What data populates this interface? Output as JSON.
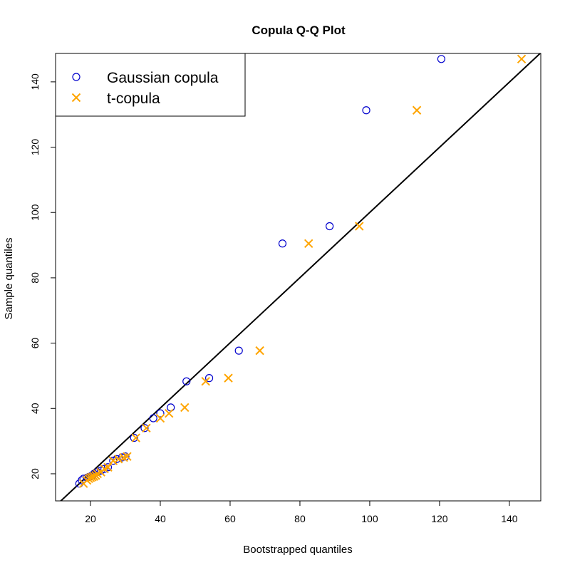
{
  "chart_data": {
    "type": "scatter",
    "title": "Copula Q-Q Plot",
    "xlabel": "Bootstrapped quantiles",
    "ylabel": "Sample quantiles",
    "xlim": [
      10,
      149
    ],
    "ylim": [
      11.7,
      148.7
    ],
    "xticks": [
      20,
      40,
      60,
      80,
      100,
      120,
      140
    ],
    "yticks": [
      20,
      40,
      60,
      80,
      100,
      120,
      140
    ],
    "legend_position": "top-left",
    "reference_line": {
      "x1": 10,
      "y1": 10.2,
      "x2": 149,
      "y2": 148.9,
      "color": "#000000"
    },
    "series": [
      {
        "name": "Gaussian copula",
        "marker": "circle",
        "color": "#0000CD",
        "x": [
          16.8,
          17.5,
          18.0,
          19.0,
          19.5,
          20.0,
          20.5,
          21.0,
          22.0,
          23.0,
          24.0,
          25.0,
          26.5,
          27.5,
          29.0,
          30.0,
          32.5,
          35.5,
          38.0,
          40.0,
          43.0,
          47.5,
          54.0,
          62.5,
          75.0,
          88.5,
          99.0,
          120.5
        ],
        "y": [
          17.0,
          18.0,
          18.5,
          18.8,
          19.0,
          19.2,
          19.5,
          20.0,
          20.5,
          21.0,
          21.5,
          22.0,
          24.0,
          24.5,
          25.0,
          25.3,
          31.0,
          34.0,
          37.0,
          38.5,
          40.3,
          48.3,
          49.3,
          57.7,
          90.5,
          95.8,
          131.3,
          147.0
        ]
      },
      {
        "name": "t-copula",
        "marker": "cross",
        "color": "#FFA500",
        "x": [
          18.0,
          19.0,
          19.5,
          20.0,
          20.5,
          21.0,
          21.5,
          22.0,
          23.0,
          24.0,
          25.0,
          26.5,
          28.0,
          29.5,
          30.5,
          33.0,
          36.0,
          40.0,
          42.5,
          47.0,
          53.0,
          59.5,
          68.5,
          82.5,
          97.0,
          113.5,
          143.5
        ],
        "y": [
          17.0,
          18.0,
          18.5,
          18.8,
          19.0,
          19.2,
          19.5,
          20.0,
          20.5,
          21.5,
          22.0,
          24.0,
          24.5,
          25.0,
          25.3,
          31.0,
          34.0,
          37.0,
          38.5,
          40.3,
          48.3,
          49.3,
          57.7,
          90.5,
          95.8,
          131.3,
          147.0
        ]
      }
    ]
  }
}
